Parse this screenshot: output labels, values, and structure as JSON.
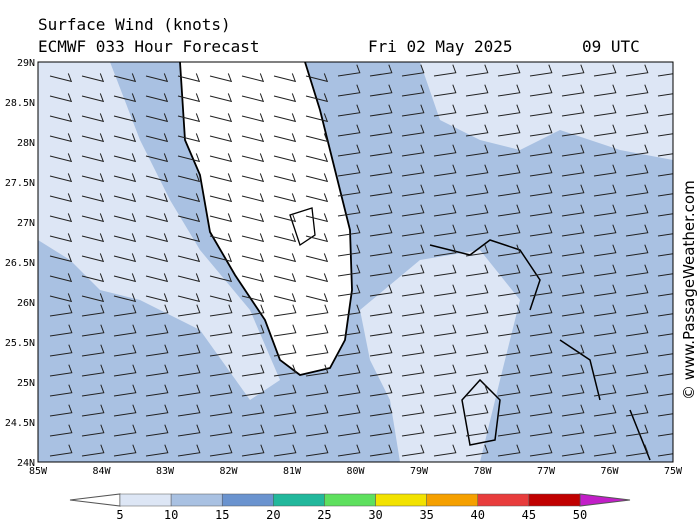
{
  "header": {
    "title": "Surface Wind (knots)",
    "model": "ECMWF 033 Hour Forecast",
    "date": "Fri 02 May 2025",
    "time": "09 UTC"
  },
  "map": {
    "lat_labels": [
      "29N",
      "28.5N",
      "28N",
      "27.5N",
      "27N",
      "26.5N",
      "26N",
      "25.5N",
      "25N",
      "24.5N",
      "24N"
    ],
    "lon_labels": [
      "85W",
      "84W",
      "83W",
      "82W",
      "81W",
      "80W",
      "79W",
      "78W",
      "77W",
      "76W",
      "75W"
    ],
    "watermark": "© www.PassageWeather.com"
  },
  "colorbar": {
    "labels": [
      5,
      10,
      15,
      20,
      25,
      30,
      35,
      40,
      45,
      50
    ]
  }
}
